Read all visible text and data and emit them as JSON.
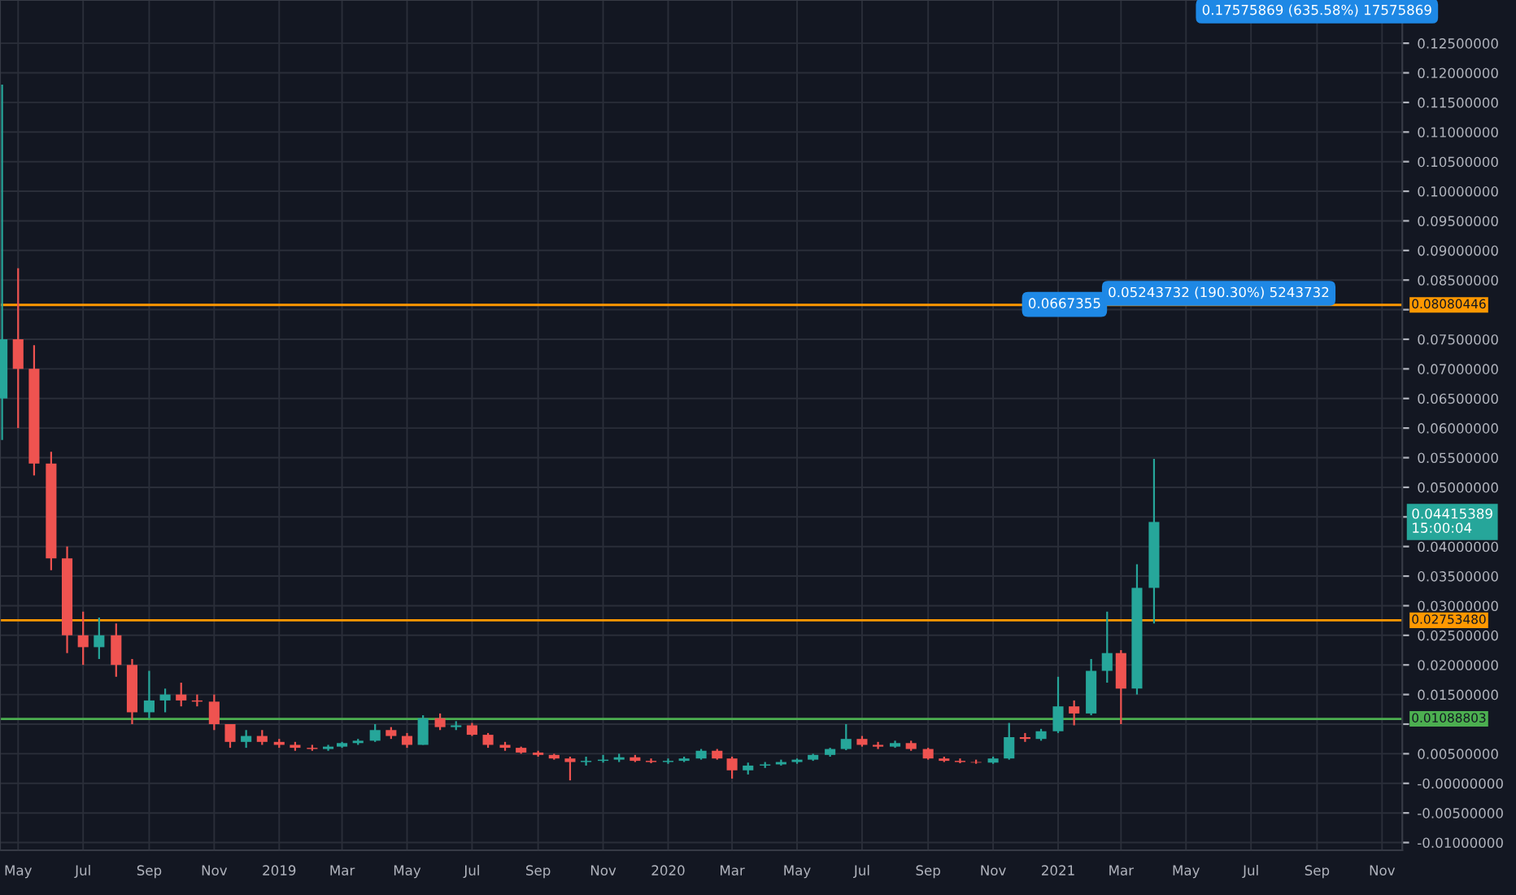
{
  "chart_data": {
    "type": "candlestick",
    "x": [
      "2018-04-16",
      "2018-05-01",
      "2018-05-16",
      "2018-06-01",
      "2018-06-16",
      "2018-07-01",
      "2018-07-16",
      "2018-08-01",
      "2018-08-16",
      "2018-09-01",
      "2018-09-16",
      "2018-10-01",
      "2018-10-16",
      "2018-11-01",
      "2018-11-16",
      "2018-12-01",
      "2018-12-16",
      "2019-01-01",
      "2019-01-16",
      "2019-02-01",
      "2019-02-16",
      "2019-03-01",
      "2019-03-16",
      "2019-04-01",
      "2019-04-16",
      "2019-05-01",
      "2019-05-16",
      "2019-06-01",
      "2019-06-16",
      "2019-07-01",
      "2019-07-16",
      "2019-08-01",
      "2019-08-16",
      "2019-09-01",
      "2019-09-16",
      "2019-10-01",
      "2019-10-16",
      "2019-11-01",
      "2019-11-16",
      "2019-12-01",
      "2019-12-16",
      "2020-01-01",
      "2020-01-16",
      "2020-02-01",
      "2020-02-16",
      "2020-03-01",
      "2020-03-16",
      "2020-04-01",
      "2020-04-16",
      "2020-05-01",
      "2020-05-16",
      "2020-06-01",
      "2020-06-16",
      "2020-07-01",
      "2020-07-16",
      "2020-08-01",
      "2020-08-16",
      "2020-09-01",
      "2020-09-16",
      "2020-10-01",
      "2020-10-16",
      "2020-11-01",
      "2020-11-16",
      "2020-12-01",
      "2020-12-16",
      "2021-01-01",
      "2021-01-16",
      "2021-02-01",
      "2021-02-16",
      "2021-03-01",
      "2021-03-16",
      "2021-04-01"
    ],
    "ohlc": [
      [
        0.065,
        0.118,
        0.058,
        0.075
      ],
      [
        0.075,
        0.087,
        0.06,
        0.07
      ],
      [
        0.07,
        0.074,
        0.052,
        0.054
      ],
      [
        0.054,
        0.056,
        0.036,
        0.038
      ],
      [
        0.038,
        0.04,
        0.022,
        0.025
      ],
      [
        0.025,
        0.029,
        0.02,
        0.023
      ],
      [
        0.023,
        0.028,
        0.021,
        0.025
      ],
      [
        0.025,
        0.027,
        0.018,
        0.02
      ],
      [
        0.02,
        0.021,
        0.01,
        0.012
      ],
      [
        0.012,
        0.019,
        0.011,
        0.014
      ],
      [
        0.014,
        0.016,
        0.012,
        0.015
      ],
      [
        0.015,
        0.017,
        0.013,
        0.014
      ],
      [
        0.014,
        0.015,
        0.013,
        0.0138
      ],
      [
        0.0138,
        0.015,
        0.009,
        0.01
      ],
      [
        0.01,
        0.01,
        0.006,
        0.007
      ],
      [
        0.007,
        0.009,
        0.006,
        0.008
      ],
      [
        0.008,
        0.009,
        0.0065,
        0.007
      ],
      [
        0.007,
        0.0075,
        0.006,
        0.0065
      ],
      [
        0.0065,
        0.007,
        0.0055,
        0.006
      ],
      [
        0.006,
        0.0065,
        0.0055,
        0.0058
      ],
      [
        0.0058,
        0.0065,
        0.0055,
        0.0062
      ],
      [
        0.0062,
        0.007,
        0.006,
        0.0068
      ],
      [
        0.0068,
        0.0075,
        0.0065,
        0.0072
      ],
      [
        0.0072,
        0.01,
        0.007,
        0.009
      ],
      [
        0.009,
        0.0095,
        0.0075,
        0.008
      ],
      [
        0.008,
        0.0085,
        0.006,
        0.0065
      ],
      [
        0.0065,
        0.0115,
        0.0065,
        0.011
      ],
      [
        0.011,
        0.0118,
        0.009,
        0.0095
      ],
      [
        0.0095,
        0.0105,
        0.009,
        0.0098
      ],
      [
        0.0098,
        0.0102,
        0.008,
        0.0082
      ],
      [
        0.0082,
        0.0085,
        0.006,
        0.0065
      ],
      [
        0.0065,
        0.007,
        0.0055,
        0.006
      ],
      [
        0.006,
        0.0062,
        0.005,
        0.0052
      ],
      [
        0.0052,
        0.0055,
        0.0045,
        0.0048
      ],
      [
        0.0048,
        0.005,
        0.004,
        0.0042
      ],
      [
        0.0042,
        0.0045,
        0.0005,
        0.0036
      ],
      [
        0.0036,
        0.0045,
        0.003,
        0.0038
      ],
      [
        0.0038,
        0.0048,
        0.0035,
        0.004
      ],
      [
        0.004,
        0.005,
        0.0036,
        0.0044
      ],
      [
        0.0044,
        0.0048,
        0.0036,
        0.0038
      ],
      [
        0.0038,
        0.0042,
        0.0034,
        0.0036
      ],
      [
        0.0036,
        0.0042,
        0.0033,
        0.0038
      ],
      [
        0.0038,
        0.0045,
        0.0036,
        0.0042
      ],
      [
        0.0042,
        0.0058,
        0.004,
        0.0055
      ],
      [
        0.0055,
        0.0058,
        0.004,
        0.0042
      ],
      [
        0.0042,
        0.0045,
        0.0008,
        0.0022
      ],
      [
        0.0022,
        0.0035,
        0.0015,
        0.003
      ],
      [
        0.003,
        0.0036,
        0.0026,
        0.0032
      ],
      [
        0.0032,
        0.004,
        0.003,
        0.0036
      ],
      [
        0.0036,
        0.0042,
        0.0033,
        0.004
      ],
      [
        0.004,
        0.005,
        0.0038,
        0.0048
      ],
      [
        0.0048,
        0.006,
        0.0045,
        0.0058
      ],
      [
        0.0058,
        0.01,
        0.0056,
        0.0075
      ],
      [
        0.0075,
        0.008,
        0.0062,
        0.0065
      ],
      [
        0.0065,
        0.007,
        0.0058,
        0.0062
      ],
      [
        0.0062,
        0.0072,
        0.006,
        0.0068
      ],
      [
        0.0068,
        0.0072,
        0.0055,
        0.0058
      ],
      [
        0.0058,
        0.006,
        0.004,
        0.0042
      ],
      [
        0.0042,
        0.0045,
        0.0036,
        0.0038
      ],
      [
        0.0038,
        0.0042,
        0.0034,
        0.0036
      ],
      [
        0.0036,
        0.004,
        0.0033,
        0.0035
      ],
      [
        0.0035,
        0.0045,
        0.0033,
        0.0042
      ],
      [
        0.0042,
        0.0102,
        0.004,
        0.0078
      ],
      [
        0.0078,
        0.0085,
        0.007,
        0.0075
      ],
      [
        0.0075,
        0.0092,
        0.0072,
        0.0088
      ],
      [
        0.0088,
        0.018,
        0.0085,
        0.013
      ],
      [
        0.013,
        0.014,
        0.0098,
        0.0118
      ],
      [
        0.0118,
        0.021,
        0.0115,
        0.019
      ],
      [
        0.019,
        0.029,
        0.017,
        0.022
      ],
      [
        0.022,
        0.0225,
        0.01,
        0.016
      ],
      [
        0.016,
        0.037,
        0.015,
        0.033
      ],
      [
        0.033,
        0.0548,
        0.027,
        0.04415389
      ]
    ],
    "colors": [
      "#26a69a",
      "#ef5350",
      "#ef5350",
      "#ef5350",
      "#ef5350",
      "#ef5350",
      "#26a69a",
      "#ef5350",
      "#ef5350",
      "#26a69a",
      "#26a69a",
      "#ef5350",
      "#ef5350",
      "#ef5350",
      "#ef5350",
      "#26a69a",
      "#ef5350",
      "#ef5350",
      "#ef5350",
      "#ef5350",
      "#26a69a",
      "#26a69a",
      "#26a69a",
      "#26a69a",
      "#ef5350",
      "#ef5350",
      "#26a69a",
      "#ef5350",
      "#26a69a",
      "#ef5350",
      "#ef5350",
      "#ef5350",
      "#ef5350",
      "#ef5350",
      "#ef5350",
      "#ef5350",
      "#26a69a",
      "#26a69a",
      "#26a69a",
      "#ef5350",
      "#ef5350",
      "#26a69a",
      "#26a69a",
      "#26a69a",
      "#ef5350",
      "#ef5350",
      "#26a69a",
      "#26a69a",
      "#26a69a",
      "#26a69a",
      "#26a69a",
      "#26a69a",
      "#26a69a",
      "#ef5350",
      "#ef5350",
      "#26a69a",
      "#ef5350",
      "#ef5350",
      "#ef5350",
      "#ef5350",
      "#ef5350",
      "#26a69a",
      "#26a69a",
      "#ef5350",
      "#26a69a",
      "#26a69a",
      "#ef5350",
      "#26a69a",
      "#26a69a",
      "#ef5350",
      "#26a69a",
      "#26a69a"
    ],
    "xlim": [
      "2018-04-14",
      "2021-11-20"
    ],
    "xticks": [
      {
        "value": "2018-05-01",
        "label": "May"
      },
      {
        "value": "2018-07-01",
        "label": "Jul"
      },
      {
        "value": "2018-09-01",
        "label": "Sep"
      },
      {
        "value": "2018-11-01",
        "label": "Nov"
      },
      {
        "value": "2019-01-01",
        "label": "2019"
      },
      {
        "value": "2019-03-01",
        "label": "Mar"
      },
      {
        "value": "2019-05-01",
        "label": "May"
      },
      {
        "value": "2019-07-01",
        "label": "Jul"
      },
      {
        "value": "2019-09-01",
        "label": "Sep"
      },
      {
        "value": "2019-11-01",
        "label": "Nov"
      },
      {
        "value": "2020-01-01",
        "label": "2020"
      },
      {
        "value": "2020-03-01",
        "label": "Mar"
      },
      {
        "value": "2020-05-01",
        "label": "May"
      },
      {
        "value": "2020-07-01",
        "label": "Jul"
      },
      {
        "value": "2020-09-01",
        "label": "Sep"
      },
      {
        "value": "2020-11-01",
        "label": "Nov"
      },
      {
        "value": "2021-01-01",
        "label": "2021"
      },
      {
        "value": "2021-03-01",
        "label": "Mar"
      },
      {
        "value": "2021-05-01",
        "label": "May"
      },
      {
        "value": "2021-07-01",
        "label": "Jul"
      },
      {
        "value": "2021-09-01",
        "label": "Sep"
      },
      {
        "value": "2021-11-01",
        "label": "Nov"
      }
    ],
    "ylim": [
      -0.0113,
      0.1323
    ],
    "yticks": [
      {
        "value": -0.01,
        "label": "-0.01000000"
      },
      {
        "value": -0.005,
        "label": "-0.00500000"
      },
      {
        "value": 0,
        "label": "-0.00000000"
      },
      {
        "value": 0.005,
        "label": "0.00500000"
      },
      {
        "value": 0.01,
        "label": null
      },
      {
        "value": 0.015,
        "label": "0.01500000"
      },
      {
        "value": 0.02,
        "label": "0.02000000"
      },
      {
        "value": 0.025,
        "label": "0.02500000"
      },
      {
        "value": 0.03,
        "label": "0.03000000"
      },
      {
        "value": 0.035,
        "label": "0.03500000"
      },
      {
        "value": 0.04,
        "label": "0.04000000"
      },
      {
        "value": 0.045,
        "label": null
      },
      {
        "value": 0.05,
        "label": "0.05000000"
      },
      {
        "value": 0.055,
        "label": "0.05500000"
      },
      {
        "value": 0.06,
        "label": "0.06000000"
      },
      {
        "value": 0.065,
        "label": "0.06500000"
      },
      {
        "value": 0.07,
        "label": "0.07000000"
      },
      {
        "value": 0.075,
        "label": "0.07500000"
      },
      {
        "value": 0.08,
        "label": null
      },
      {
        "value": 0.085,
        "label": "0.08500000"
      },
      {
        "value": 0.09,
        "label": "0.09000000"
      },
      {
        "value": 0.095,
        "label": "0.09500000"
      },
      {
        "value": 0.1,
        "label": "0.10000000"
      },
      {
        "value": 0.105,
        "label": "0.10500000"
      },
      {
        "value": 0.11,
        "label": "0.11000000"
      },
      {
        "value": 0.115,
        "label": "0.11500000"
      },
      {
        "value": 0.12,
        "label": "0.12000000"
      },
      {
        "value": 0.125,
        "label": "0.12500000"
      }
    ],
    "grid": true,
    "ref_lines": [
      {
        "axis": "y",
        "value": 0.08080446,
        "label": "0.08080446",
        "color": "#ff9800"
      },
      {
        "axis": "y",
        "value": 0.0275348,
        "label": "0.02753480",
        "color": "#ff9800"
      },
      {
        "axis": "y",
        "value": 0.01088803,
        "label": "0.01088803",
        "color": "#4caf50"
      }
    ],
    "annotations": [
      "0.04415389\n15:00:04",
      "0.0667355",
      "0.05243732 (190.30%) 5243732",
      "0.17575869 (635.58%) 17575869"
    ]
  }
}
